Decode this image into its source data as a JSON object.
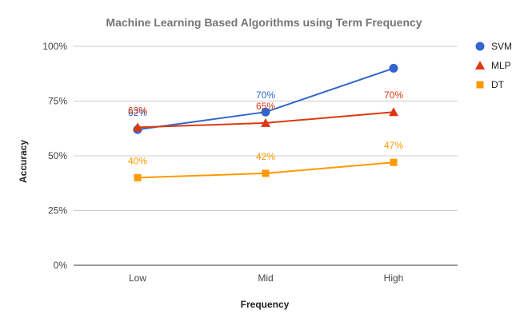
{
  "chart_data": {
    "type": "line",
    "title": "Machine Learning Based Algorithms using Term Frequency",
    "xlabel": "Frequency",
    "ylabel": "Accuracy",
    "categories": [
      "Low",
      "Mid",
      "High"
    ],
    "ylim": [
      0,
      100
    ],
    "yticks": [
      0,
      25,
      50,
      75,
      100
    ],
    "ytick_labels": [
      "0%",
      "25%",
      "50%",
      "75%",
      "100%"
    ],
    "grid": true,
    "legend_position": "right",
    "series": [
      {
        "name": "SVM",
        "values": [
          62,
          70,
          90
        ],
        "color": "#3366CC",
        "marker": "circle",
        "labels": [
          "62%",
          "70%",
          ""
        ]
      },
      {
        "name": "MLP",
        "values": [
          63,
          65,
          70
        ],
        "color": "#DC3912",
        "marker": "triangle",
        "labels": [
          "63%",
          "65%",
          "70%"
        ]
      },
      {
        "name": "DT",
        "values": [
          40,
          42,
          47
        ],
        "color": "#FF9900",
        "marker": "square",
        "labels": [
          "40%",
          "42%",
          "47%"
        ]
      }
    ]
  }
}
